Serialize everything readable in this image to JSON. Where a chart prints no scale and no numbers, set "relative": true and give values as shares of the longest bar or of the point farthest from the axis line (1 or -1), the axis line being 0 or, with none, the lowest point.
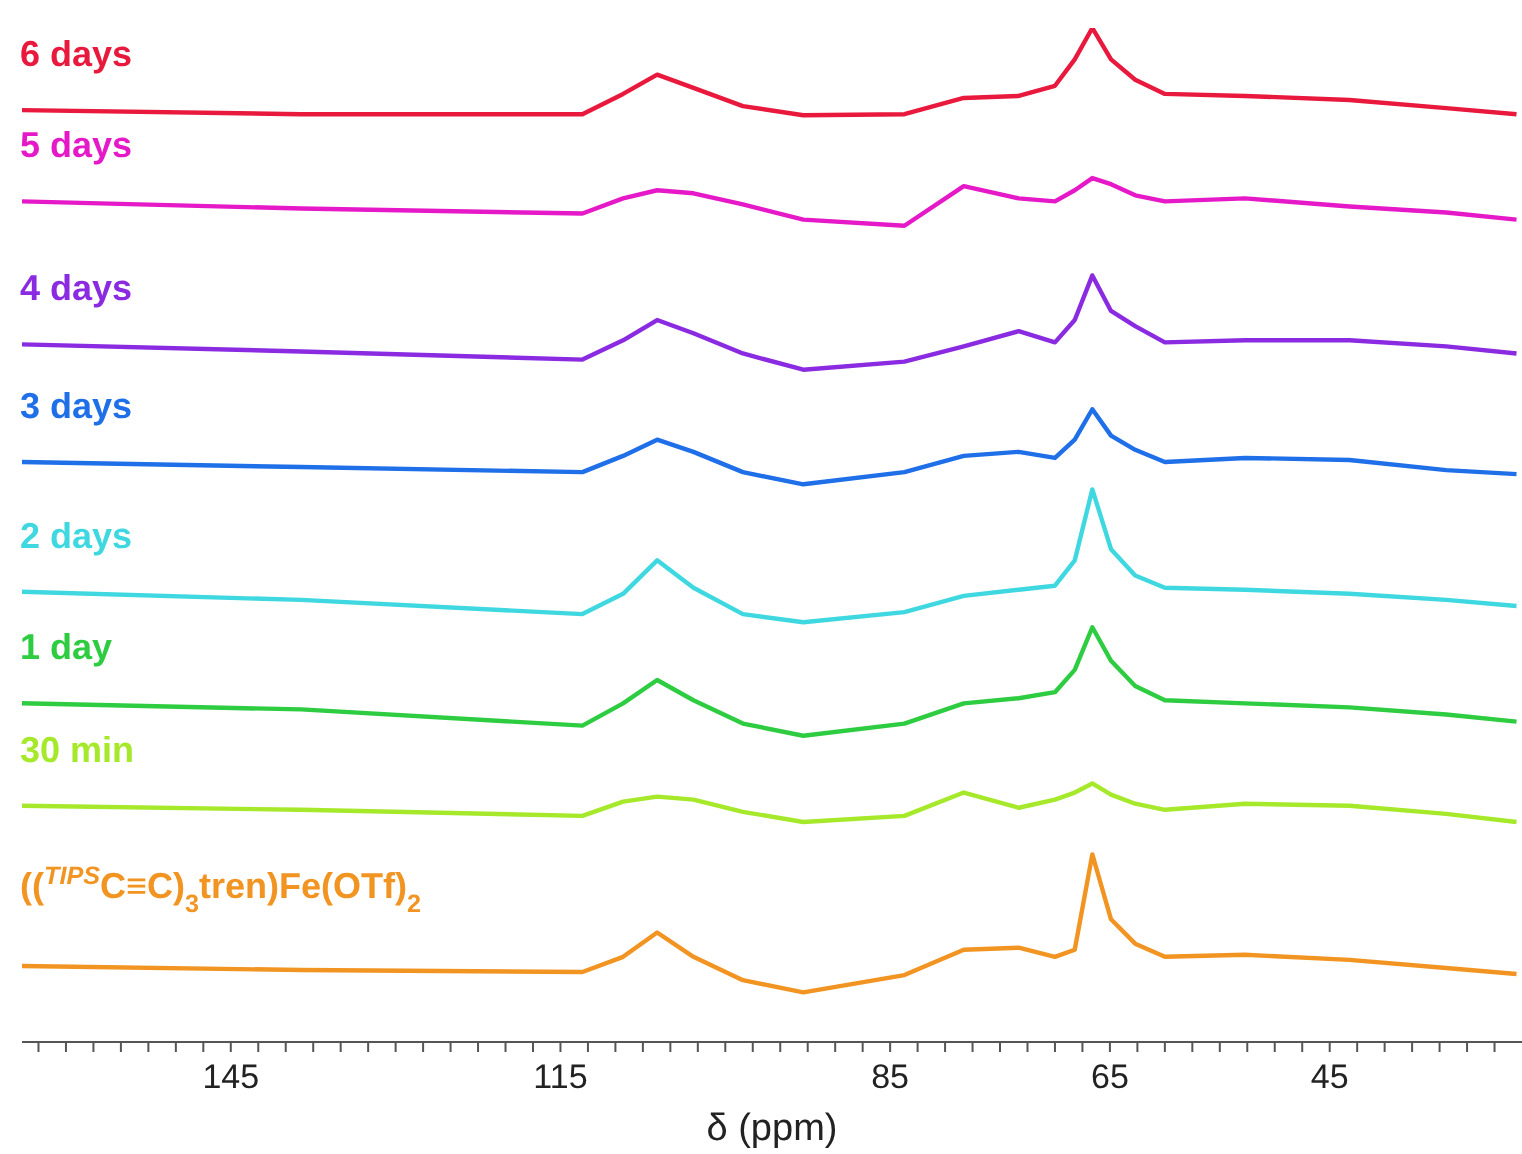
{
  "chart_data": {
    "type": "line",
    "relative": true,
    "xlabel": "δ (ppm)",
    "marker": "none",
    "line_style": "solid",
    "xlim": [
      164,
      27.5
    ],
    "xticks": [
      {
        "value": 162.5,
        "label": null
      },
      {
        "value": 160,
        "label": null
      },
      {
        "value": 157.5,
        "label": null
      },
      {
        "value": 155,
        "label": null
      },
      {
        "value": 152.5,
        "label": null
      },
      {
        "value": 150,
        "label": null
      },
      {
        "value": 147.5,
        "label": null
      },
      145,
      {
        "value": 142.5,
        "label": null
      },
      {
        "value": 140,
        "label": null
      },
      {
        "value": 137.5,
        "label": null
      },
      {
        "value": 135,
        "label": null
      },
      {
        "value": 132.5,
        "label": null
      },
      {
        "value": 130,
        "label": null
      },
      {
        "value": 127.5,
        "label": null
      },
      {
        "value": 125,
        "label": null
      },
      {
        "value": 122.5,
        "label": null
      },
      {
        "value": 120,
        "label": null
      },
      {
        "value": 117.5,
        "label": null
      },
      115,
      {
        "value": 112.5,
        "label": null
      },
      {
        "value": 110,
        "label": null
      },
      {
        "value": 107.5,
        "label": null
      },
      {
        "value": 105,
        "label": null
      },
      {
        "value": 102.5,
        "label": null
      },
      {
        "value": 100,
        "label": null
      },
      {
        "value": 97.5,
        "label": null
      },
      {
        "value": 95,
        "label": null
      },
      {
        "value": 92.5,
        "label": null
      },
      {
        "value": 90,
        "label": null
      },
      {
        "value": 87.5,
        "label": null
      },
      85,
      {
        "value": 82.5,
        "label": null
      },
      {
        "value": 80,
        "label": null
      },
      {
        "value": 77.5,
        "label": null
      },
      {
        "value": 75,
        "label": null
      },
      {
        "value": 72.5,
        "label": null
      },
      {
        "value": 70,
        "label": null
      },
      {
        "value": 67.5,
        "label": null
      },
      65,
      {
        "value": 62.5,
        "label": null
      },
      {
        "value": 60,
        "label": null
      },
      {
        "value": 57.5,
        "label": null
      },
      {
        "value": 55,
        "label": null
      },
      {
        "value": 52.5,
        "label": null
      },
      {
        "value": 50,
        "label": null
      },
      {
        "value": 47.5,
        "label": null
      },
      45,
      {
        "value": 42.5,
        "label": null
      },
      {
        "value": 40,
        "label": null
      },
      {
        "value": 37.5,
        "label": null
      },
      {
        "value": 35,
        "label": null
      },
      {
        "value": 32.5,
        "label": null
      },
      {
        "value": 30,
        "label": null
      }
    ],
    "x": [
      164.0,
      138.6,
      113.0,
      109.3,
      106.2,
      102.9,
      98.4,
      92.9,
      83.7,
      78.3,
      73.3,
      70.0,
      68.2,
      66.6,
      64.9,
      62.7,
      60.0,
      52.7,
      43.2,
      34.4,
      28.0
    ],
    "series": [
      {
        "name": "6 days",
        "color": "#e8193c",
        "values": [
          0.919,
          0.915,
          0.915,
          0.935,
          0.954,
          0.941,
          0.923,
          0.914,
          0.915,
          0.931,
          0.933,
          0.943,
          0.969,
          1.0,
          0.969,
          0.949,
          0.935,
          0.933,
          0.929,
          0.921,
          0.915
        ]
      },
      {
        "name": "5 days",
        "color": "#e619c8",
        "values": [
          0.829,
          0.822,
          0.817,
          0.832,
          0.84,
          0.837,
          0.826,
          0.811,
          0.805,
          0.844,
          0.832,
          0.829,
          0.84,
          0.852,
          0.846,
          0.835,
          0.829,
          0.832,
          0.824,
          0.818,
          0.811
        ]
      },
      {
        "name": "4 days",
        "color": "#8a2be2",
        "values": [
          0.688,
          0.681,
          0.673,
          0.692,
          0.712,
          0.699,
          0.679,
          0.663,
          0.671,
          0.686,
          0.701,
          0.69,
          0.712,
          0.756,
          0.721,
          0.706,
          0.69,
          0.692,
          0.692,
          0.686,
          0.679
        ]
      },
      {
        "name": "3 days",
        "color": "#1e6fe8",
        "values": [
          0.572,
          0.567,
          0.562,
          0.578,
          0.594,
          0.582,
          0.562,
          0.55,
          0.562,
          0.578,
          0.582,
          0.576,
          0.594,
          0.624,
          0.598,
          0.584,
          0.572,
          0.576,
          0.574,
          0.564,
          0.56
        ]
      },
      {
        "name": "2 days",
        "color": "#3fd8e0",
        "values": [
          0.444,
          0.436,
          0.422,
          0.442,
          0.475,
          0.448,
          0.422,
          0.414,
          0.424,
          0.44,
          0.446,
          0.45,
          0.475,
          0.545,
          0.486,
          0.46,
          0.448,
          0.446,
          0.442,
          0.436,
          0.43
        ]
      },
      {
        "name": "1 day",
        "color": "#2ecc40",
        "values": [
          0.334,
          0.328,
          0.312,
          0.334,
          0.357,
          0.337,
          0.314,
          0.302,
          0.314,
          0.334,
          0.339,
          0.345,
          0.367,
          0.409,
          0.376,
          0.351,
          0.337,
          0.334,
          0.33,
          0.323,
          0.316
        ]
      },
      {
        "name": "30 min",
        "color": "#a6e82a",
        "values": [
          0.233,
          0.229,
          0.223,
          0.237,
          0.242,
          0.239,
          0.227,
          0.217,
          0.223,
          0.246,
          0.231,
          0.239,
          0.246,
          0.255,
          0.244,
          0.235,
          0.229,
          0.235,
          0.233,
          0.225,
          0.217
        ]
      },
      {
        "name": "(($^{TIPS}$C≡C)$_{3}$tren)Fe(OTf)$_{2}$",
        "color": "#f29422",
        "values": [
          0.075,
          0.071,
          0.069,
          0.084,
          0.108,
          0.084,
          0.061,
          0.049,
          0.066,
          0.091,
          0.093,
          0.084,
          0.091,
          0.185,
          0.121,
          0.097,
          0.084,
          0.086,
          0.081,
          0.073,
          0.067
        ]
      }
    ]
  }
}
